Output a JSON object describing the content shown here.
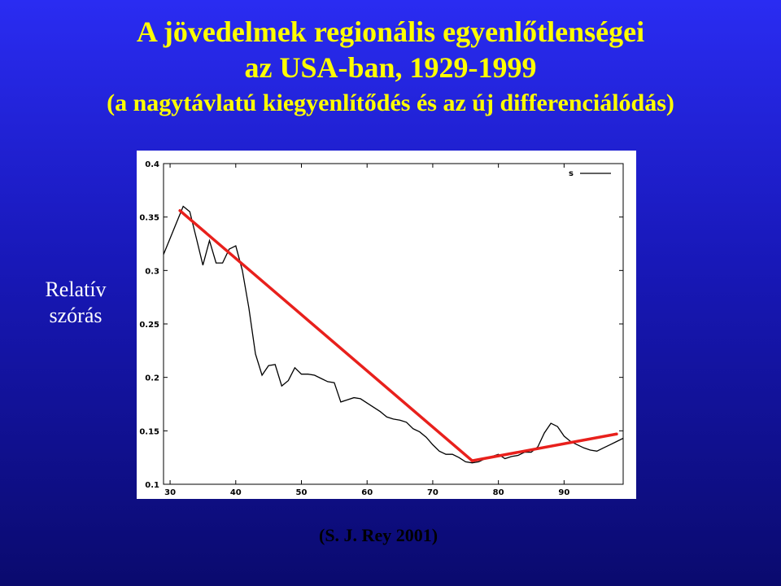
{
  "title": {
    "line1": "A jövedelmek regionális egyenlőtlenségei",
    "line2": "az USA-ban, 1929-1999",
    "line3": "(a nagytávlatú kiegyenlítődés és az új differenciálódás)"
  },
  "y_axis_label": {
    "line1": "Relatív",
    "line2": "szórás"
  },
  "citation": "(S. J. Rey 2001)",
  "colors": {
    "background_top": "#2a2cf2",
    "background_bottom": "#0a0a6e",
    "title": "#ffff00",
    "trend": "#e8201c",
    "series": "#000000"
  },
  "chart_data": {
    "type": "line",
    "xlim": [
      29,
      99
    ],
    "ylim": [
      0.1,
      0.4
    ],
    "xticks": [
      "30",
      "40",
      "50",
      "60",
      "70",
      "80",
      "90"
    ],
    "yticks": [
      "0.1",
      "0.15",
      "0.2",
      "0.25",
      "0.3",
      "0.35",
      "0.4"
    ],
    "legend": {
      "entry": "s",
      "placement": "top-right"
    },
    "series": [
      {
        "name": "s",
        "x": [
          29,
          30,
          31,
          32,
          33,
          34,
          35,
          36,
          37,
          38,
          39,
          40,
          41,
          42,
          43,
          44,
          45,
          46,
          47,
          48,
          49,
          50,
          51,
          52,
          53,
          54,
          55,
          56,
          57,
          58,
          59,
          60,
          61,
          62,
          63,
          64,
          65,
          66,
          67,
          68,
          69,
          70,
          71,
          72,
          73,
          74,
          75,
          76,
          77,
          78,
          79,
          80,
          81,
          82,
          83,
          84,
          85,
          86,
          87,
          88,
          89,
          90,
          91,
          92,
          93,
          94,
          95,
          96,
          97,
          98,
          99
        ],
        "values": [
          0.315,
          0.33,
          0.345,
          0.36,
          0.355,
          0.33,
          0.305,
          0.328,
          0.307,
          0.307,
          0.32,
          0.323,
          0.3,
          0.265,
          0.222,
          0.202,
          0.211,
          0.212,
          0.192,
          0.197,
          0.209,
          0.203,
          0.203,
          0.202,
          0.199,
          0.196,
          0.195,
          0.177,
          0.179,
          0.181,
          0.18,
          0.176,
          0.172,
          0.168,
          0.163,
          0.161,
          0.16,
          0.158,
          0.152,
          0.149,
          0.144,
          0.137,
          0.131,
          0.128,
          0.128,
          0.125,
          0.121,
          0.12,
          0.121,
          0.124,
          0.126,
          0.128,
          0.124,
          0.126,
          0.127,
          0.13,
          0.13,
          0.135,
          0.148,
          0.157,
          0.154,
          0.145,
          0.14,
          0.137,
          0.134,
          0.132,
          0.131,
          0.134,
          0.137,
          0.14,
          0.143
        ]
      }
    ],
    "trend_lines": [
      {
        "x": [
          31.5,
          76
        ],
        "values": [
          0.356,
          0.122
        ]
      },
      {
        "x": [
          76,
          98
        ],
        "values": [
          0.122,
          0.147
        ]
      }
    ]
  }
}
